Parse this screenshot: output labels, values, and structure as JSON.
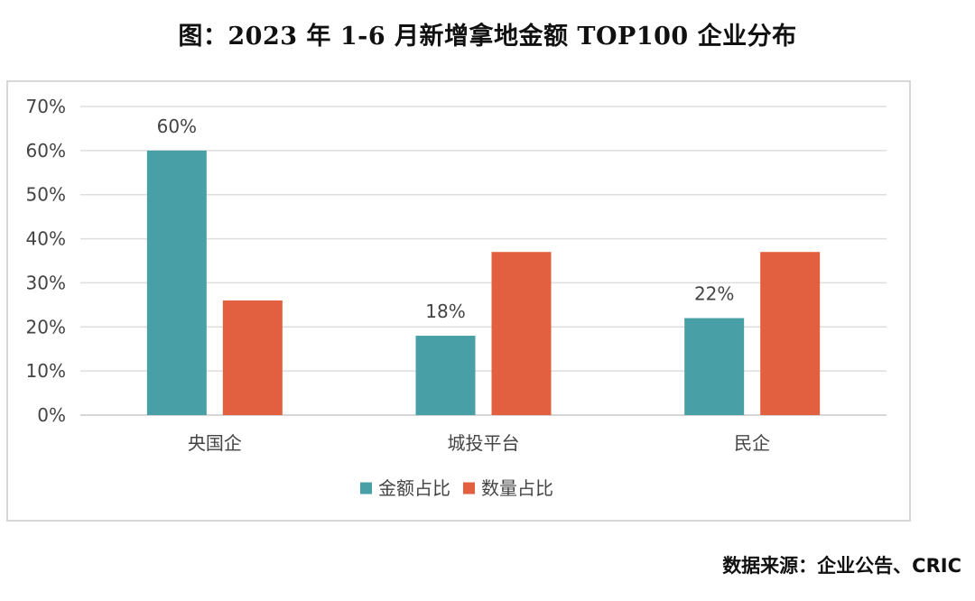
{
  "title": "图：2023 年 1-6 月新增拿地金额 TOP100 企业分布",
  "source": "数据来源：企业公告、CRIC",
  "chart_data": {
    "type": "bar",
    "title": "图：2023 年 1-6 月新增拿地金额 TOP100 企业分布",
    "categories": [
      "央国企",
      "城投平台",
      "民企"
    ],
    "series": [
      {
        "name": "金额占比",
        "color": "#48a0a6",
        "values": [
          60,
          18,
          22
        ],
        "data_labels": [
          "60%",
          "18%",
          "22%"
        ]
      },
      {
        "name": "数量占比",
        "color": "#e2603f",
        "values": [
          26,
          37,
          37
        ],
        "data_labels": []
      }
    ],
    "ylim": [
      0,
      70
    ],
    "yticks": [
      "0%",
      "10%",
      "20%",
      "30%",
      "40%",
      "50%",
      "60%",
      "70%"
    ],
    "ytick_values": [
      0,
      10,
      20,
      30,
      40,
      50,
      60,
      70
    ],
    "xlabel": "",
    "ylabel": "",
    "grid": true,
    "legend": "bottom-center"
  }
}
